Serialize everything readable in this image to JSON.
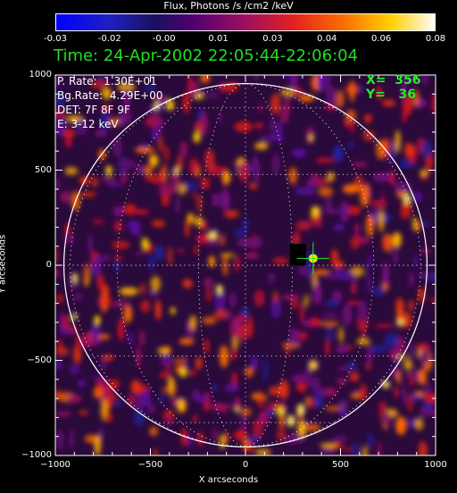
{
  "colorbar": {
    "title": "Flux, Photons /s /cm2 /keV",
    "tick_labels": [
      "-0.03",
      "-0.02",
      "-0.00",
      "0.01",
      "0.03",
      "0.04",
      "0.06",
      "0.08"
    ],
    "range": [
      -0.03,
      0.08
    ]
  },
  "header": {
    "time": "Time: 24-Apr-2002 22:05:44-22:06:04"
  },
  "info": {
    "p_rate": "P. Rate:  1.30E+01",
    "bg_rate": "Bg.Rate:  4.29E+00",
    "det": "DET: 7F 8F 9F",
    "energy": "E: 3-12 keV"
  },
  "cursor": {
    "x_text": "X=  356",
    "y_text": "Y=   36",
    "x": 356,
    "y": 36
  },
  "chart_data": {
    "type": "heatmap",
    "title": "",
    "xlabel": "X arcseconds",
    "ylabel": "Y arcseconds",
    "xlim": [
      -1000,
      1000
    ],
    "ylim": [
      -1000,
      1000
    ],
    "x_ticks": [
      -1000,
      -500,
      0,
      500,
      1000
    ],
    "y_ticks": [
      -1000,
      -500,
      0,
      500,
      1000
    ],
    "x_tick_labels": [
      "−1000",
      "−500",
      "0",
      "500",
      "1000"
    ],
    "y_tick_labels": [
      "−1000",
      "−500",
      "0",
      "500",
      "1000"
    ],
    "solar_radius": 955,
    "grid": "dotted heliographic grid",
    "bright_spot": {
      "x": 356,
      "y": 36
    }
  },
  "colors": {
    "cursor": "#22ee22",
    "limb": "#ffffff"
  }
}
